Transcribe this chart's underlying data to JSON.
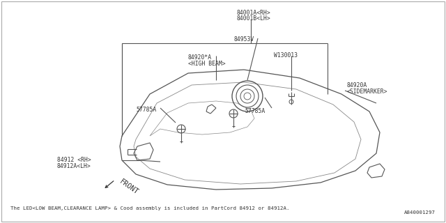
{
  "bg_color": "#ffffff",
  "line_color": "#555555",
  "text_color": "#333333",
  "footnote": "The LED<LOW BEAM,CLEARANCE LAMP> & Cood assembly is included in PartCord 84912 or 84912A.",
  "part_id": "A840001297",
  "labels": {
    "84001A_RH": "84001A<RH>",
    "84001B_LH": "84001B<LH>",
    "84953V": "84953V",
    "84920A_HIGH_line1": "84920*A",
    "84920A_HIGH_line2": "<HIGH BEAM>",
    "57785A_left": "57785A",
    "57785A_right": "57785A",
    "W130013": "W130013",
    "84920A_SIDE_line1": "84920A",
    "84920A_SIDE_line2": "<SIDEMARKER>",
    "84912_RH": "84912 <RH>",
    "84912A_LH": "84912A<LH>",
    "FRONT": "FRONT"
  }
}
